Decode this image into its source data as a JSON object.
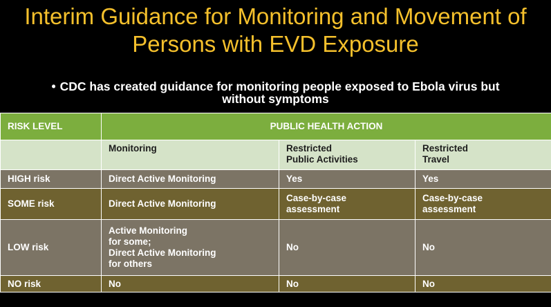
{
  "title_line1": "Interim Guidance for Monitoring and Movement of",
  "title_line2": "Persons with EVD Exposure",
  "bullet_line1": "CDC has created guidance for monitoring people exposed to Ebola virus but",
  "bullet_line2": "without symptoms",
  "table": {
    "header": {
      "risk_level": "RISK LEVEL",
      "public_health_action": "PUBLIC HEALTH ACTION"
    },
    "subheader": {
      "monitoring": "Monitoring",
      "restricted_public_line1": "Restricted",
      "restricted_public_line2": "Public Activities",
      "restricted_travel_line1": "Restricted",
      "restricted_travel_line2": "Travel"
    },
    "rows": [
      {
        "risk": "HIGH risk",
        "monitoring": [
          "Direct Active Monitoring"
        ],
        "public": [
          "Yes"
        ],
        "travel": [
          "Yes"
        ]
      },
      {
        "risk": "SOME risk",
        "monitoring": [
          "Direct Active Monitoring"
        ],
        "public": [
          "Case-by-case",
          "assessment"
        ],
        "travel": [
          "Case-by-case",
          "assessment"
        ]
      },
      {
        "risk": "LOW risk",
        "monitoring": [
          "Active Monitoring",
          "for some;",
          "Direct Active Monitoring",
          "for others"
        ],
        "public": [
          "No"
        ],
        "travel": [
          "No"
        ]
      },
      {
        "risk": "NO risk",
        "monitoring": [
          "No"
        ],
        "public": [
          "No"
        ],
        "travel": [
          "No"
        ]
      }
    ]
  },
  "colors": {
    "title": "#f5c02c",
    "header_green": "#7cae3e",
    "subheader_light": "#d5e3c8",
    "row_gray": "#7c7465",
    "row_olive": "#6f6230"
  }
}
